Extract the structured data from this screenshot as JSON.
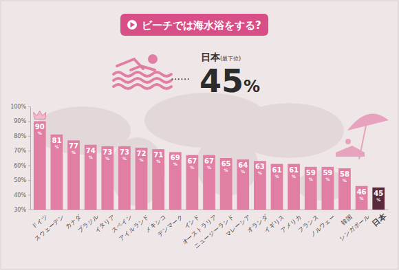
{
  "chart_data": {
    "type": "bar",
    "title": "ビーチでは海水浴をする?",
    "annotations": [
      "日本",
      "(最下位)",
      "……",
      "45%"
    ],
    "categories": [
      "ドイツ",
      "スウェーデン",
      "カナダ",
      "ブラジル",
      "イタリア",
      "スペイン",
      "アイルランド",
      "メキシコ",
      "デンマーク",
      "インド",
      "オーストラリア",
      "ニュージーランド",
      "マレーシア",
      "オランダ",
      "イギリス",
      "アメリカ",
      "フランス",
      "ノルウェー",
      "韓国",
      "シンガポール",
      "日本"
    ],
    "values": [
      90,
      81,
      77,
      74,
      73,
      73,
      72,
      71,
      69,
      67,
      67,
      65,
      64,
      63,
      61,
      61,
      59,
      59,
      58,
      46,
      45
    ],
    "value_labels": [
      "90%",
      "81%",
      "77%",
      "74%",
      "73%",
      "73%",
      "72%",
      "71%",
      "69%",
      "67%",
      "67%",
      "65%",
      "64%",
      "63%",
      "61%",
      "61%",
      "59%",
      "59%",
      "58%",
      "46%",
      "45%"
    ],
    "colors": [
      "#e17ea4",
      "#e17ea4",
      "#e17ea4",
      "#e17ea4",
      "#e17ea4",
      "#e17ea4",
      "#e17ea4",
      "#e17ea4",
      "#e17ea4",
      "#e17ea4",
      "#e17ea4",
      "#e17ea4",
      "#e17ea4",
      "#e17ea4",
      "#e17ea4",
      "#e17ea4",
      "#e17ea4",
      "#e17ea4",
      "#e17ea4",
      "#e17ea4",
      "#5a2a3c"
    ],
    "ylim": [
      30,
      100
    ],
    "yticks": [
      {
        "value": 30,
        "label": "30%"
      },
      {
        "value": 40,
        "label": "40%"
      },
      {
        "value": 50,
        "label": "50%"
      },
      {
        "value": 60,
        "label": "60%"
      },
      {
        "value": 70,
        "label": "70%"
      },
      {
        "value": 80,
        "label": "80%"
      },
      {
        "value": 90,
        "label": "90%"
      },
      {
        "value": 100,
        "label": "100%"
      }
    ],
    "grid": false,
    "data_labels": true
  }
}
